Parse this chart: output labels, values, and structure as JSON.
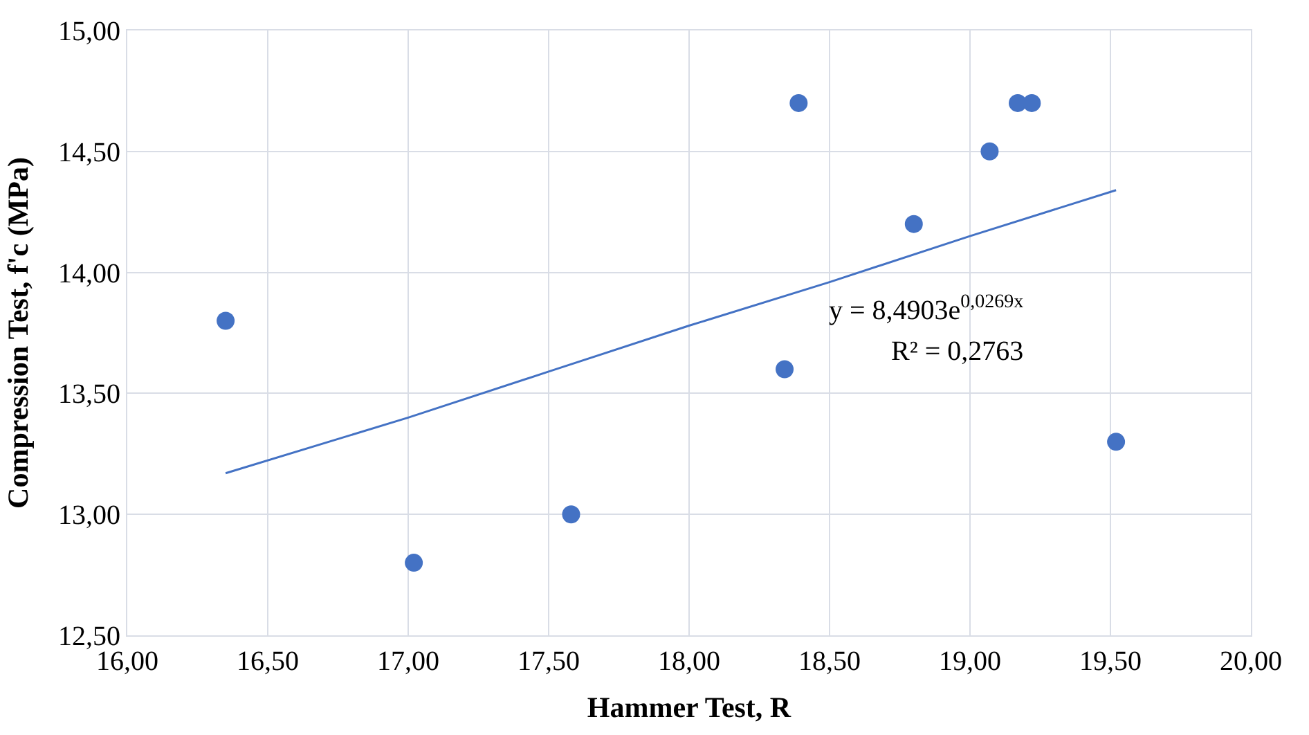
{
  "chart_data": {
    "type": "scatter",
    "xlabel": "Hammer Test, R",
    "ylabel": "Compression Test, f'c (MPa)",
    "xlim": [
      16,
      20
    ],
    "ylim": [
      12.5,
      15
    ],
    "xticks": [
      {
        "value": 16,
        "label": "16,00"
      },
      {
        "value": 16.5,
        "label": "16,50"
      },
      {
        "value": 17,
        "label": "17,00"
      },
      {
        "value": 17.5,
        "label": "17,50"
      },
      {
        "value": 18,
        "label": "18,00"
      },
      {
        "value": 18.5,
        "label": "18,50"
      },
      {
        "value": 19,
        "label": "19,00"
      },
      {
        "value": 19.5,
        "label": "19,50"
      },
      {
        "value": 20,
        "label": "20,00"
      }
    ],
    "yticks": [
      {
        "value": 12.5,
        "label": "12,50"
      },
      {
        "value": 13,
        "label": "13,00"
      },
      {
        "value": 13.5,
        "label": "13,50"
      },
      {
        "value": 14,
        "label": "14,00"
      },
      {
        "value": 14.5,
        "label": "14,50"
      },
      {
        "value": 15,
        "label": "15,00"
      }
    ],
    "grid": true,
    "series": [
      {
        "color": "#4472c4",
        "marker": "circle",
        "x": [
          16.35,
          17.02,
          17.58,
          18.34,
          18.39,
          18.8,
          19.07,
          19.17,
          19.22,
          19.52
        ],
        "values": [
          13.8,
          12.8,
          13.0,
          13.6,
          14.7,
          14.2,
          14.5,
          14.7,
          14.7,
          13.3
        ]
      },
      {
        "type": "line",
        "color": "#4472c4",
        "marker": "none",
        "line_style": "solid",
        "x": [
          16.35,
          17.0,
          17.5,
          18.0,
          18.5,
          19.0,
          19.52
        ],
        "values": [
          13.17,
          13.4,
          13.59,
          13.78,
          13.96,
          14.15,
          14.34
        ]
      }
    ],
    "annotations": [
      "y = 8,4903e$^{0,0269x}$",
      "R² = 0,2763"
    ]
  }
}
